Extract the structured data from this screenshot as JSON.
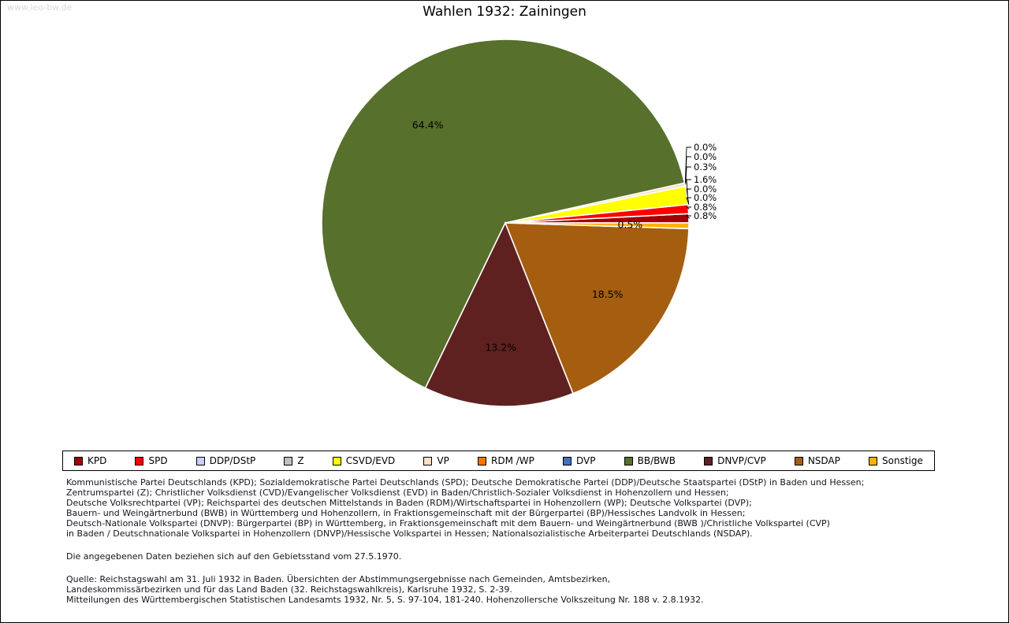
{
  "page": {
    "watermark": "www.leo-bw.de",
    "title": "Wahlen 1932: Zainingen"
  },
  "chart_data": {
    "type": "pie",
    "title": "Wahlen 1932: Zainingen",
    "unit": "percent",
    "start_angle_deg": 0,
    "direction": "counterclockwise",
    "legend_position": "bottom",
    "slices": [
      {
        "party": "KPD",
        "value_pct": 0.8,
        "color": "#a40000",
        "label_placement": "leader"
      },
      {
        "party": "SPD",
        "value_pct": 0.8,
        "color": "#ff0000",
        "label_placement": "leader"
      },
      {
        "party": "DDP/DStP",
        "value_pct": 0.0,
        "color": "#ccccff",
        "label_placement": "leader"
      },
      {
        "party": "Z",
        "value_pct": 0.0,
        "color": "#c0c0c0",
        "label_placement": "leader"
      },
      {
        "party": "CSVD/EVD",
        "value_pct": 1.6,
        "color": "#ffff00",
        "label_placement": "leader"
      },
      {
        "party": "VP",
        "value_pct": 0.3,
        "color": "#ffe1c6",
        "label_placement": "leader"
      },
      {
        "party": "RDM /WP",
        "value_pct": 0.0,
        "color": "#ff7400",
        "label_placement": "leader"
      },
      {
        "party": "DVP",
        "value_pct": 0.0,
        "color": "#4170c4",
        "label_placement": "leader"
      },
      {
        "party": "BB/BWB",
        "value_pct": 64.4,
        "color": "#57702c",
        "label_placement": "inside"
      },
      {
        "party": "DNVP/CVP",
        "value_pct": 13.2,
        "color": "#5f2120",
        "label_placement": "inside"
      },
      {
        "party": "NSDAP",
        "value_pct": 18.5,
        "color": "#a55e10",
        "label_placement": "inside"
      },
      {
        "party": "Sonstige",
        "value_pct": 0.5,
        "color": "#ffb200",
        "label_placement": "inside"
      }
    ]
  },
  "notes": {
    "party_definitions_lines": [
      "Kommunistische Partei Deutschlands (KPD); Sozialdemokratische Partei Deutschlands (SPD); Deutsche Demokratische Partei (DDP)/Deutsche Staatspartei (DStP) in Baden und Hessen;",
      "Zentrumspartei (Z); Christlicher Volksdienst (CVD)/Evangelischer Volksdienst (EVD) in Baden/Christlich-Sozialer Volksdienst in Hohenzollern und Hessen;",
      "Deutsche Volksrechtpartei (VP); Reichspartei des deutschen Mittelstands in Baden (RDM)/Wirtschaftspartei in Hohenzollern (WP); Deutsche Volkspartei (DVP);",
      "Bauern- und Weingärtnerbund (BWB) in Württemberg und Hohenzollern, in Fraktionsgemeinschaft mit der Bürgerpartei (BP)/Hessisches Landvolk in Hessen;",
      "Deutsch-Nationale Volkspartei (DNVP): Bürgerpartei (BP) in Württemberg, in Fraktionsgemeinschaft mit dem Bauern- und Weingärtnerbund (BWB )/Christliche Volkspartei (CVP)",
      "in Baden / Deutschnationale Volkspartei in Hohenzollern (DNVP)/Hessische Volkspartei in Hessen; Nationalsozialistische Arbeiterpartei Deutschlands (NSDAP)."
    ],
    "territorial_note": "Die angegebenen Daten beziehen sich auf den Gebietsstand vom 27.5.1970.",
    "source_lines": [
      "Quelle: Reichstagswahl am 31. Juli 1932 in Baden. Übersichten der Abstimmungsergebnisse nach Gemeinden, Amtsbezirken,",
      "Landeskommissärbezirken und für das Land Baden (32. Reichstagswahlkreis), Karlsruhe 1932, S. 2-39.",
      "Mitteilungen des Württembergischen Statistischen Landesamts 1932, Nr. 5, S. 97-104, 181-240. Hohenzollersche Volkszeitung Nr. 188 v. 2.8.1932."
    ]
  }
}
